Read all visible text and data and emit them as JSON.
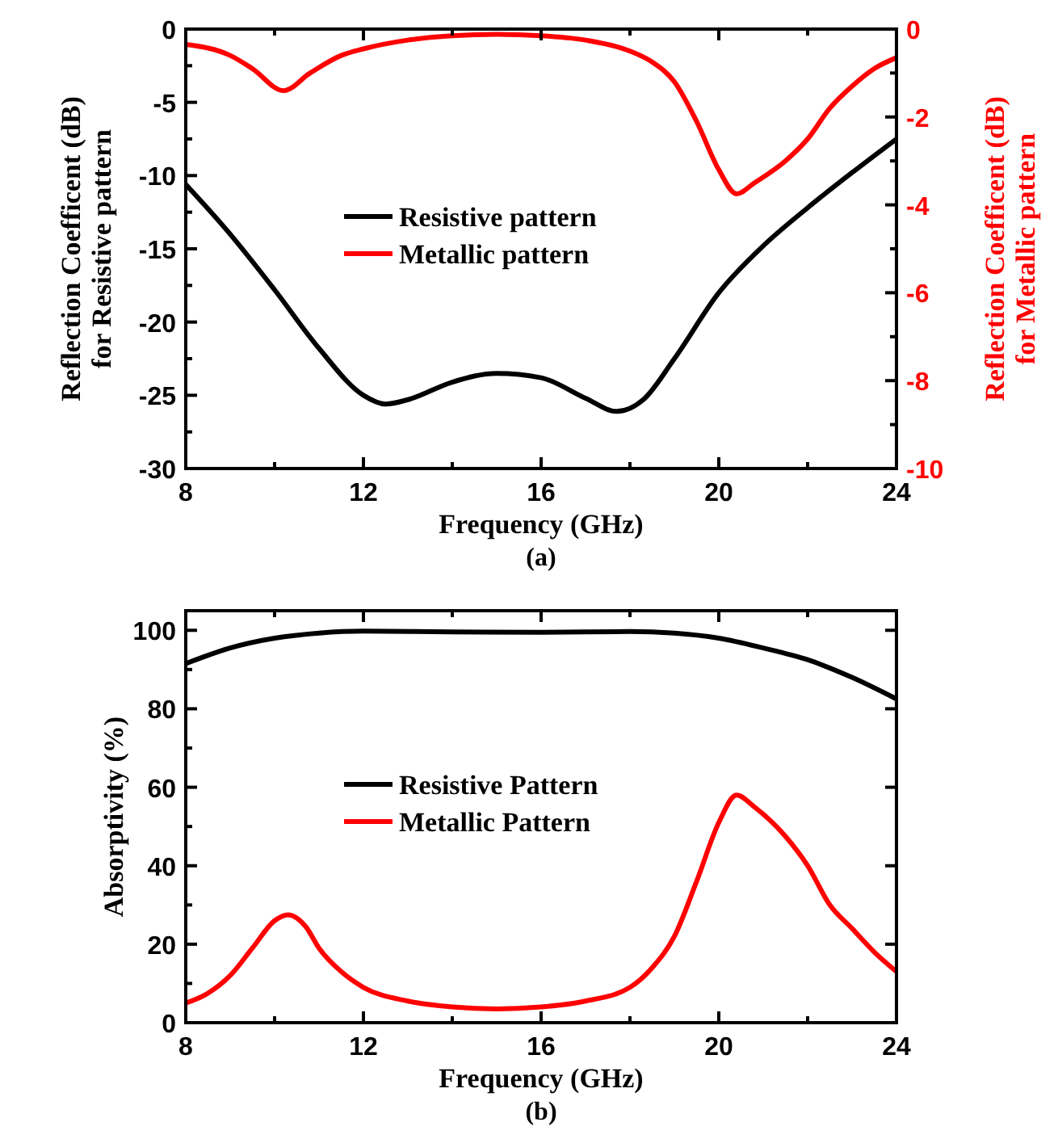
{
  "chart_data": [
    {
      "type": "line",
      "xlabel": "Frequency (GHz)",
      "ylabel": "Reflection Coefficent (dB)\nfor Resistive pattern",
      "y2label": "Reflection Coefficent (dB)\nfor Metallic pattern",
      "annotations": [
        "(a)"
      ],
      "xlim": [
        8,
        24
      ],
      "xticks": [
        8,
        12,
        16,
        20,
        24
      ],
      "ylim": [
        -30,
        0
      ],
      "yticks": [
        -30,
        -25,
        -20,
        -15,
        -10,
        -5,
        0
      ],
      "y2lim": [
        -10,
        0
      ],
      "y2ticks": [
        -10,
        -8,
        -6,
        -4,
        -2,
        0
      ],
      "legend": "center",
      "grid": false,
      "marker": "none",
      "line_style": "solid",
      "series": [
        {
          "name": "Resistive pattern",
          "color": "#000000",
          "x": [
            8,
            9,
            10,
            11,
            12,
            12.5,
            13,
            14,
            15,
            16,
            17,
            17.7,
            18.3,
            19,
            20,
            21,
            22,
            23,
            24
          ],
          "values": [
            -10.6,
            -14,
            -17.8,
            -21.8,
            -25,
            -25.6,
            -25.3,
            -24.1,
            -23.5,
            -23.8,
            -25.2,
            -26.1,
            -25.3,
            -22.5,
            -18,
            -14.8,
            -12.2,
            -9.8,
            -7.5
          ]
        },
        {
          "name": "Metallic pattern",
          "color": "#ff0000",
          "axis": "y2",
          "x": [
            8,
            9,
            9.5,
            10.2,
            10.8,
            11.5,
            12,
            13,
            14,
            15,
            16,
            17,
            18,
            18.5,
            19,
            19.5,
            20,
            20.4,
            20.8,
            21.5,
            22,
            22.5,
            23,
            23.5,
            24
          ],
          "values": [
            -0.35,
            -0.6,
            -0.9,
            -1.4,
            -1,
            -0.6,
            -0.45,
            -0.25,
            -0.15,
            -0.12,
            -0.15,
            -0.25,
            -0.5,
            -0.75,
            -1.2,
            -2.1,
            -3.2,
            -3.75,
            -3.5,
            -3,
            -2.5,
            -1.8,
            -1.3,
            -0.9,
            -0.65
          ]
        }
      ]
    },
    {
      "type": "line",
      "xlabel": "Frequency (GHz)",
      "ylabel": "Absorptivity (%)",
      "annotations": [
        "(b)"
      ],
      "xlim": [
        8,
        24
      ],
      "xticks": [
        8,
        12,
        16,
        20,
        24
      ],
      "ylim": [
        0,
        105
      ],
      "yticks": [
        0,
        20,
        40,
        60,
        80,
        100
      ],
      "legend": "center",
      "grid": false,
      "marker": "none",
      "line_style": "solid",
      "series": [
        {
          "name": "Resistive Pattern",
          "color": "#000000",
          "x": [
            8,
            9,
            10,
            11,
            12,
            14,
            16,
            18,
            19,
            20,
            21,
            22,
            23,
            24
          ],
          "values": [
            91.5,
            95.5,
            98,
            99.3,
            99.8,
            99.6,
            99.5,
            99.7,
            99.3,
            98,
            95.5,
            92.5,
            88,
            82.5
          ]
        },
        {
          "name": "Metallic Pattern",
          "color": "#ff0000",
          "x": [
            8,
            8.5,
            9,
            9.5,
            10,
            10.3,
            10.7,
            11,
            11.5,
            12,
            13,
            14,
            15,
            16,
            17,
            18,
            18.5,
            19,
            19.5,
            20,
            20.4,
            20.8,
            21.5,
            22,
            22.5,
            23,
            23.5,
            24
          ],
          "values": [
            5,
            7.5,
            12,
            19,
            26,
            27.5,
            24.5,
            19,
            13,
            9,
            5.5,
            4,
            3.5,
            4,
            5.5,
            9,
            14,
            22,
            36,
            51,
            58,
            55,
            47.5,
            40,
            30,
            24,
            18,
            13
          ]
        }
      ]
    }
  ]
}
